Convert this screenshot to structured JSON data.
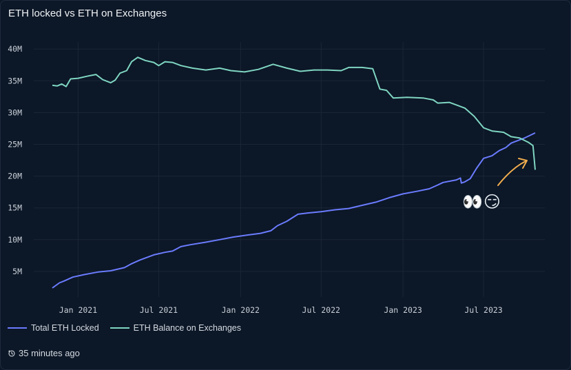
{
  "header": {
    "title": "ETH locked vs ETH on Exchanges"
  },
  "footer": {
    "updated": "35 minutes ago",
    "clock_icon": "clock-icon"
  },
  "annotation": {
    "emoji": "👀😏",
    "arrow_color": "#f0ad4e"
  },
  "colors": {
    "background": "#0c1727",
    "grid": "#1a2636"
  },
  "chart_data": {
    "type": "line",
    "title": "ETH locked vs ETH on Exchanges",
    "xlabel": "",
    "ylabel": "",
    "x_ticks": [
      "Jan 2021",
      "Jul 2021",
      "Jan 2022",
      "Jul 2022",
      "Jan 2023",
      "Jul 2023"
    ],
    "y_ticks": [
      "5M",
      "10M",
      "15M",
      "20M",
      "25M",
      "30M",
      "35M",
      "40M"
    ],
    "ylim": [
      0,
      40000000
    ],
    "grid": true,
    "legend_position": "bottom-left",
    "series": [
      {
        "name": "Total ETH Locked",
        "color": "#6b7cff",
        "points": [
          [
            "2020-11-04",
            2400000
          ],
          [
            "2020-11-20",
            3200000
          ],
          [
            "2020-12-01",
            3500000
          ],
          [
            "2020-12-20",
            4100000
          ],
          [
            "2021-01-15",
            4500000
          ],
          [
            "2021-02-15",
            4900000
          ],
          [
            "2021-03-15",
            5100000
          ],
          [
            "2021-04-15",
            5600000
          ],
          [
            "2021-05-01",
            6200000
          ],
          [
            "2021-05-20",
            6800000
          ],
          [
            "2021-06-20",
            7600000
          ],
          [
            "2021-07-15",
            8000000
          ],
          [
            "2021-08-01",
            8200000
          ],
          [
            "2021-08-20",
            8900000
          ],
          [
            "2021-09-10",
            9200000
          ],
          [
            "2021-10-15",
            9600000
          ],
          [
            "2021-11-15",
            10000000
          ],
          [
            "2021-12-15",
            10400000
          ],
          [
            "2022-01-15",
            10700000
          ],
          [
            "2022-02-15",
            11000000
          ],
          [
            "2022-03-10",
            11400000
          ],
          [
            "2022-03-25",
            12200000
          ],
          [
            "2022-04-15",
            12900000
          ],
          [
            "2022-05-10",
            14000000
          ],
          [
            "2022-06-01",
            14200000
          ],
          [
            "2022-07-01",
            14400000
          ],
          [
            "2022-08-01",
            14700000
          ],
          [
            "2022-09-01",
            14900000
          ],
          [
            "2022-10-01",
            15400000
          ],
          [
            "2022-11-01",
            15900000
          ],
          [
            "2022-12-01",
            16600000
          ],
          [
            "2023-01-01",
            17200000
          ],
          [
            "2023-02-01",
            17600000
          ],
          [
            "2023-03-01",
            18000000
          ],
          [
            "2023-03-20",
            18600000
          ],
          [
            "2023-04-01",
            19000000
          ],
          [
            "2023-05-01",
            19400000
          ],
          [
            "2023-05-10",
            19700000
          ],
          [
            "2023-05-12",
            18900000
          ],
          [
            "2023-05-20",
            19100000
          ],
          [
            "2023-06-01",
            19600000
          ],
          [
            "2023-06-15",
            21200000
          ],
          [
            "2023-07-01",
            22800000
          ],
          [
            "2023-07-20",
            23200000
          ],
          [
            "2023-08-05",
            24000000
          ],
          [
            "2023-08-20",
            24500000
          ],
          [
            "2023-09-01",
            25200000
          ],
          [
            "2023-10-01",
            26000000
          ],
          [
            "2023-10-25",
            26800000
          ]
        ]
      },
      {
        "name": "ETH Balance on Exchanges",
        "color": "#7fd6c2",
        "points": [
          [
            "2020-11-04",
            34300000
          ],
          [
            "2020-11-15",
            34200000
          ],
          [
            "2020-11-25",
            34500000
          ],
          [
            "2020-12-05",
            34100000
          ],
          [
            "2020-12-15",
            35300000
          ],
          [
            "2021-01-01",
            35400000
          ],
          [
            "2021-01-20",
            35700000
          ],
          [
            "2021-02-10",
            36000000
          ],
          [
            "2021-02-25",
            35200000
          ],
          [
            "2021-03-15",
            34700000
          ],
          [
            "2021-03-25",
            35100000
          ],
          [
            "2021-04-05",
            36200000
          ],
          [
            "2021-04-20",
            36600000
          ],
          [
            "2021-05-01",
            38000000
          ],
          [
            "2021-05-15",
            38700000
          ],
          [
            "2021-06-01",
            38200000
          ],
          [
            "2021-06-20",
            37900000
          ],
          [
            "2021-07-01",
            37400000
          ],
          [
            "2021-07-15",
            38000000
          ],
          [
            "2021-08-01",
            37900000
          ],
          [
            "2021-08-20",
            37400000
          ],
          [
            "2021-09-15",
            37000000
          ],
          [
            "2021-10-15",
            36700000
          ],
          [
            "2021-11-15",
            37000000
          ],
          [
            "2021-12-10",
            36600000
          ],
          [
            "2022-01-10",
            36400000
          ],
          [
            "2022-02-10",
            36800000
          ],
          [
            "2022-03-15",
            37600000
          ],
          [
            "2022-04-15",
            37000000
          ],
          [
            "2022-05-15",
            36500000
          ],
          [
            "2022-06-15",
            36700000
          ],
          [
            "2022-07-15",
            36700000
          ],
          [
            "2022-08-15",
            36600000
          ],
          [
            "2022-09-01",
            37100000
          ],
          [
            "2022-10-01",
            37100000
          ],
          [
            "2022-10-25",
            36900000
          ],
          [
            "2022-11-10",
            33700000
          ],
          [
            "2022-11-25",
            33500000
          ],
          [
            "2022-12-10",
            32300000
          ],
          [
            "2023-01-10",
            32400000
          ],
          [
            "2023-02-15",
            32300000
          ],
          [
            "2023-03-10",
            32000000
          ],
          [
            "2023-03-20",
            31500000
          ],
          [
            "2023-04-15",
            31600000
          ],
          [
            "2023-05-01",
            31200000
          ],
          [
            "2023-05-20",
            30700000
          ],
          [
            "2023-06-10",
            29400000
          ],
          [
            "2023-07-01",
            27600000
          ],
          [
            "2023-07-20",
            27100000
          ],
          [
            "2023-08-15",
            26900000
          ],
          [
            "2023-09-01",
            26200000
          ],
          [
            "2023-09-20",
            26000000
          ],
          [
            "2023-10-10",
            25300000
          ],
          [
            "2023-10-20",
            24800000
          ],
          [
            "2023-10-25",
            21000000
          ]
        ]
      }
    ]
  }
}
